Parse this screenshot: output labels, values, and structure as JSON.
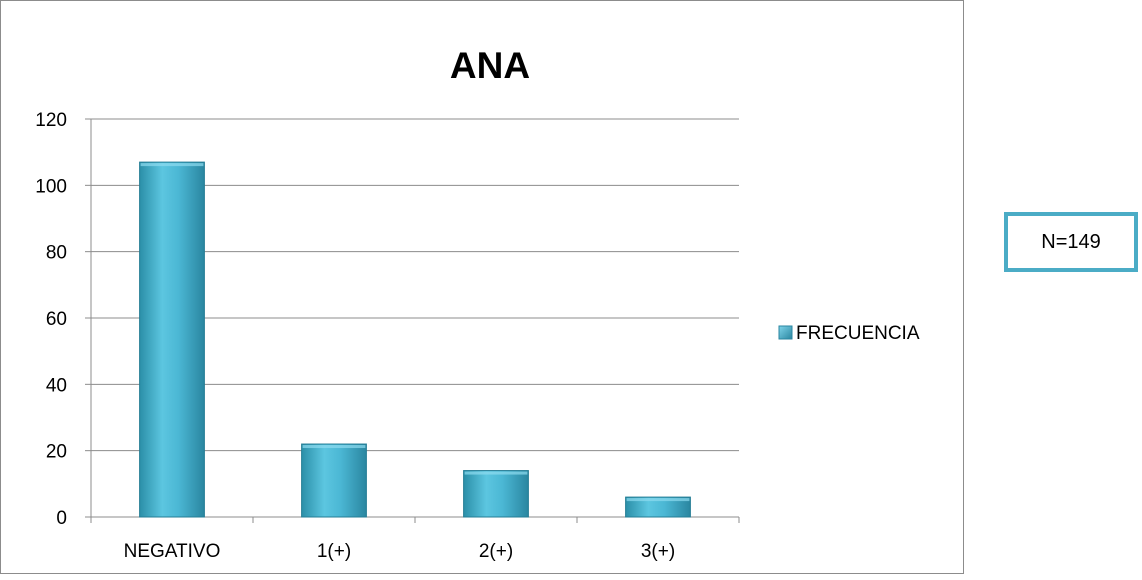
{
  "annotation": {
    "n_label": "N=149",
    "border_color": "#4bacc6"
  },
  "chart_data": {
    "type": "bar",
    "title": "ANA",
    "xlabel": "",
    "ylabel": "",
    "categories": [
      "NEGATIVO",
      "1(+)",
      "2(+)",
      "3(+)"
    ],
    "series": [
      {
        "name": "FRECUENCIA",
        "values": [
          107,
          22,
          14,
          6
        ],
        "color": "#4bacc6"
      }
    ],
    "ylim": [
      0,
      120
    ],
    "yticks": [
      0,
      20,
      40,
      60,
      80,
      100,
      120
    ],
    "grid": true,
    "legend_position": "right"
  }
}
